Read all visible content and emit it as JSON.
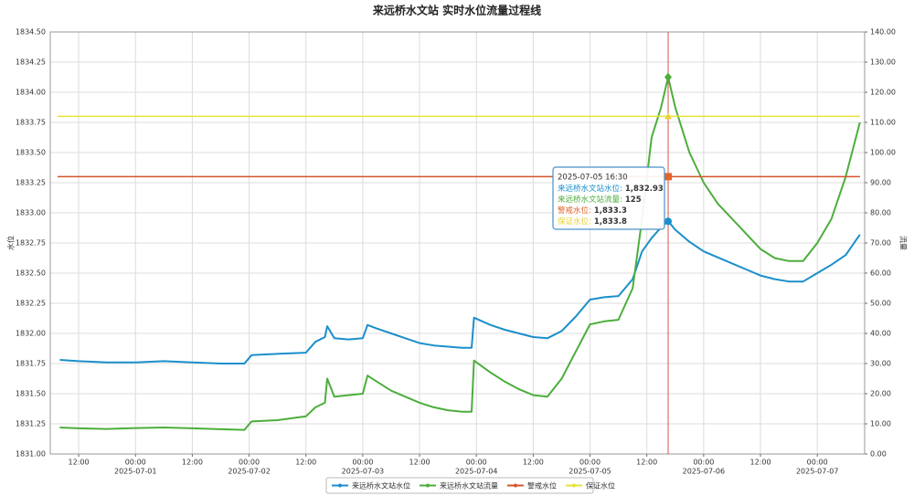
{
  "chart_data": {
    "type": "line",
    "title": "来远桥水文站 实时水位流量过程线",
    "y_label": "水位",
    "y2_label": "流量",
    "x": [
      "2025-06-30 08:00",
      "2025-06-30 12:00",
      "2025-06-30 18:00",
      "2025-07-01 00:00",
      "2025-07-01 06:00",
      "2025-07-01 12:00",
      "2025-07-01 18:00",
      "2025-07-01 23:00",
      "2025-07-02 00:30",
      "2025-07-02 06:00",
      "2025-07-02 12:00",
      "2025-07-02 14:00",
      "2025-07-02 16:00",
      "2025-07-02 16:30",
      "2025-07-02 18:00",
      "2025-07-02 21:00",
      "2025-07-03 00:00",
      "2025-07-03 01:00",
      "2025-07-03 03:00",
      "2025-07-03 06:00",
      "2025-07-03 09:00",
      "2025-07-03 12:00",
      "2025-07-03 15:00",
      "2025-07-03 18:00",
      "2025-07-03 21:00",
      "2025-07-03 23:00",
      "2025-07-03 23:30",
      "2025-07-04 03:00",
      "2025-07-04 06:00",
      "2025-07-04 09:00",
      "2025-07-04 12:00",
      "2025-07-04 15:00",
      "2025-07-04 18:00",
      "2025-07-04 21:00",
      "2025-07-05 00:00",
      "2025-07-05 03:00",
      "2025-07-05 06:00",
      "2025-07-05 09:00",
      "2025-07-05 11:00",
      "2025-07-05 13:00",
      "2025-07-05 15:00",
      "2025-07-05 16:30",
      "2025-07-05 18:00",
      "2025-07-05 21:00",
      "2025-07-06 00:00",
      "2025-07-06 03:00",
      "2025-07-06 06:00",
      "2025-07-06 09:00",
      "2025-07-06 12:00",
      "2025-07-06 15:00",
      "2025-07-06 18:00",
      "2025-07-06 21:00",
      "2025-07-07 00:00",
      "2025-07-07 03:00",
      "2025-07-07 06:00",
      "2025-07-07 09:00"
    ],
    "series": [
      {
        "name": "来远桥水文站水位",
        "color": "#1b8fcb",
        "values": [
          1831.78,
          1831.77,
          1831.76,
          1831.76,
          1831.77,
          1831.76,
          1831.75,
          1831.75,
          1831.82,
          1831.83,
          1831.84,
          1831.93,
          1831.97,
          1832.06,
          1831.96,
          1831.95,
          1831.96,
          1832.07,
          1832.04,
          1832.0,
          1831.96,
          1831.92,
          1831.9,
          1831.89,
          1831.88,
          1831.88,
          1832.13,
          1832.07,
          1832.03,
          1832.0,
          1831.97,
          1831.96,
          1832.02,
          1832.14,
          1832.28,
          1832.3,
          1832.31,
          1832.45,
          1832.68,
          1832.79,
          1832.88,
          1832.93,
          1832.86,
          1832.76,
          1832.68,
          1832.63,
          1832.58,
          1832.53,
          1832.48,
          1832.45,
          1832.43,
          1832.43,
          1832.5,
          1832.57,
          1832.65,
          1832.82
        ]
      },
      {
        "name": "来远桥水文站流量",
        "color": "#4cae3c",
        "axis": "y2",
        "values": [
          8.8,
          8.5,
          8.3,
          8.6,
          8.8,
          8.5,
          8.2,
          8.0,
          10.8,
          11.2,
          12.5,
          15.5,
          17,
          25,
          19,
          19.5,
          20,
          26,
          24,
          21,
          19,
          17,
          15.5,
          14.5,
          14,
          14,
          31,
          27,
          24,
          21.5,
          19.5,
          19,
          25,
          34,
          43,
          44,
          44.5,
          55,
          78,
          105,
          115,
          125,
          115,
          100,
          90,
          83,
          78,
          73,
          68,
          65,
          64,
          64,
          70,
          78,
          92,
          110
        ]
      },
      {
        "name": "警戒水位",
        "color": "#d4562a",
        "type": "hline",
        "value": 1833.3
      },
      {
        "name": "保证水位",
        "color": "#e6e23a",
        "type": "hline",
        "value": 1833.8
      }
    ],
    "xlim": [
      "2025-06-30 06:00",
      "2025-07-07 10:00"
    ],
    "xticks": [
      {
        "value": "2025-06-30 12:00",
        "label": "12:00"
      },
      {
        "value": "2025-07-01 00:00",
        "label": "00:00",
        "date": "2025-07-01"
      },
      {
        "value": "2025-07-01 12:00",
        "label": "12:00"
      },
      {
        "value": "2025-07-02 00:00",
        "label": "00:00",
        "date": "2025-07-02"
      },
      {
        "value": "2025-07-02 12:00",
        "label": "12:00"
      },
      {
        "value": "2025-07-03 00:00",
        "label": "00:00",
        "date": "2025-07-03"
      },
      {
        "value": "2025-07-03 12:00",
        "label": "12:00"
      },
      {
        "value": "2025-07-04 00:00",
        "label": "00:00",
        "date": "2025-07-04"
      },
      {
        "value": "2025-07-04 12:00",
        "label": "12:00"
      },
      {
        "value": "2025-07-05 00:00",
        "label": "00:00",
        "date": "2025-07-05"
      },
      {
        "value": "2025-07-05 12:00",
        "label": "12:00"
      },
      {
        "value": "2025-07-06 00:00",
        "label": "00:00",
        "date": "2025-07-06"
      },
      {
        "value": "2025-07-06 12:00",
        "label": "12:00"
      },
      {
        "value": "2025-07-07 00:00",
        "label": "00:00",
        "date": "2025-07-07"
      }
    ],
    "ylim": [
      1831,
      1834.5
    ],
    "yticks": [
      {
        "value": 1831,
        "label": "1831.00"
      },
      {
        "value": 1831.25,
        "label": "1831.25"
      },
      {
        "value": 1831.5,
        "label": "1831.50"
      },
      {
        "value": 1831.75,
        "label": "1831.75"
      },
      {
        "value": 1832,
        "label": "1832.00"
      },
      {
        "value": 1832.25,
        "label": "1832.25"
      },
      {
        "value": 1832.5,
        "label": "1832.50"
      },
      {
        "value": 1832.75,
        "label": "1832.75"
      },
      {
        "value": 1833,
        "label": "1833.00"
      },
      {
        "value": 1833.25,
        "label": "1833.25"
      },
      {
        "value": 1833.5,
        "label": "1833.50"
      },
      {
        "value": 1833.75,
        "label": "1833.75"
      },
      {
        "value": 1834,
        "label": "1834.00"
      },
      {
        "value": 1834.25,
        "label": "1834.25"
      },
      {
        "value": 1834.5,
        "label": "1834.50"
      }
    ],
    "y2lim": [
      0,
      140
    ],
    "y2ticks": [
      {
        "value": 0,
        "label": "0.00"
      },
      {
        "value": 10,
        "label": "10.00"
      },
      {
        "value": 20,
        "label": "20.00"
      },
      {
        "value": 30,
        "label": "30.00"
      },
      {
        "value": 40,
        "label": "40.00"
      },
      {
        "value": 50,
        "label": "50.00"
      },
      {
        "value": 60,
        "label": "60.00"
      },
      {
        "value": 70,
        "label": "70.00"
      },
      {
        "value": 80,
        "label": "80.00"
      },
      {
        "value": 90,
        "label": "90.00"
      },
      {
        "value": 100,
        "label": "100.00"
      },
      {
        "value": 110,
        "label": "110.00"
      },
      {
        "value": 120,
        "label": "120.00"
      },
      {
        "value": 130,
        "label": "130.00"
      },
      {
        "value": 140,
        "label": "140.00"
      }
    ],
    "grid": true,
    "legend": "bottom",
    "tooltip": {
      "x": "2025-07-05 16:30",
      "line_color": "#d9534f",
      "items": [
        {
          "label": "来远桥水文站水位:",
          "value": 1832.93,
          "value_label": "1,832.93",
          "color": "#1b8fcb",
          "marker": "circle"
        },
        {
          "label": "来远桥水文站流量:",
          "value": 125,
          "value_label": "125",
          "color": "#4cae3c",
          "marker": "diamond",
          "axis": "y2"
        },
        {
          "label": "警戒水位:",
          "value": 1833.3,
          "value_label": "1,833.3",
          "color": "#e0642c",
          "marker": "square"
        },
        {
          "label": "保证水位:",
          "value": 1833.8,
          "value_label": "1,833.8",
          "color": "#e6d23a",
          "marker": "triangle"
        }
      ]
    }
  }
}
